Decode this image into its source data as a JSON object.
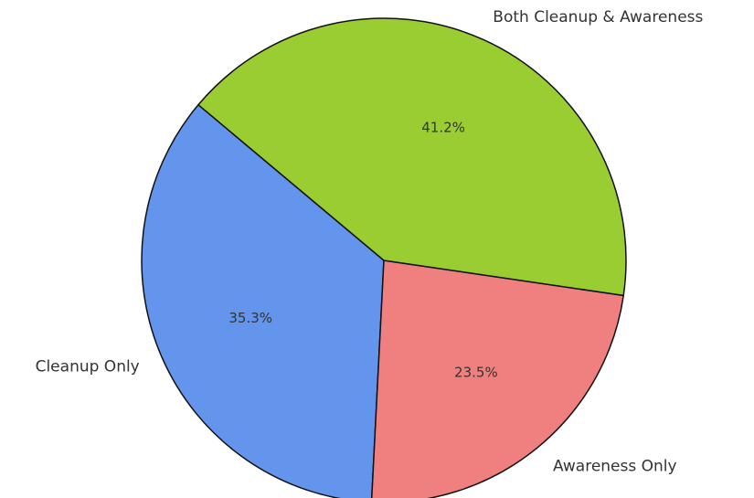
{
  "chart_data": {
    "type": "pie",
    "categories": [
      "Cleanup Only",
      "Awareness Only",
      "Both Cleanup & Awareness"
    ],
    "values": [
      35.3,
      23.5,
      41.2
    ],
    "value_labels": [
      "35.3%",
      "23.5%",
      "41.2%"
    ],
    "colors": [
      "#6495ed",
      "#f08080",
      "#9acd32"
    ],
    "start_angle": 140
  }
}
